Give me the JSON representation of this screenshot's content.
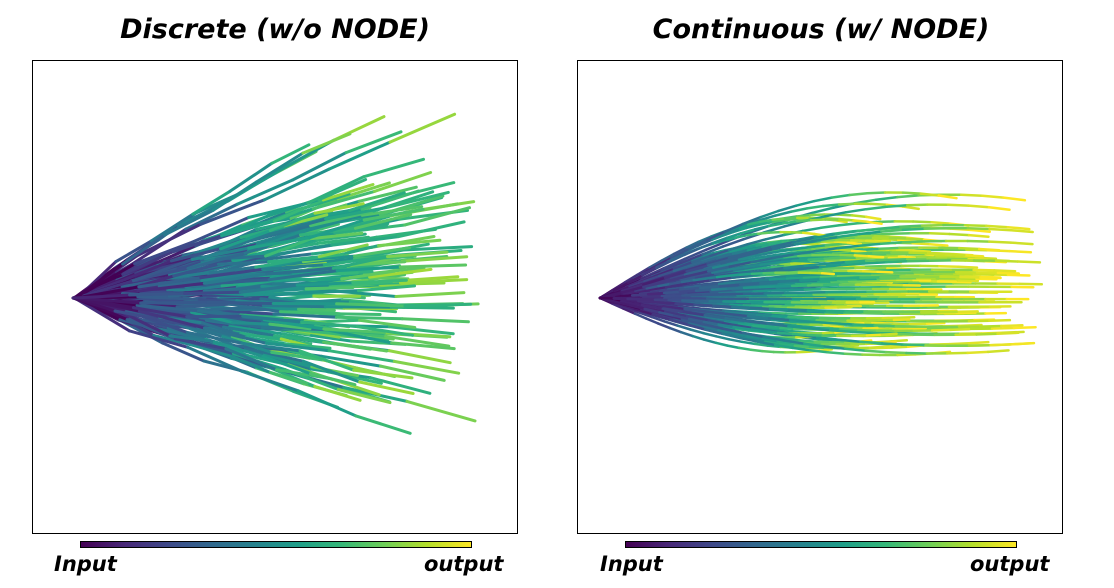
{
  "chart_data": [
    {
      "type": "trajectory",
      "title": "Discrete (w/o NODE)",
      "mode": "discrete",
      "colormap": "viridis",
      "colorbar": {
        "start_label": "Input",
        "end_label": "output"
      },
      "origin": [
        0.0,
        0.0
      ],
      "n_trajectories": 150,
      "trajectory_color_range": [
        0.0,
        0.8
      ],
      "endpoint_x_range": [
        0.55,
        0.95
      ],
      "endpoint_y_range": [
        -1.1,
        1.2
      ],
      "xlim": [
        -0.1,
        1.05
      ],
      "ylim": [
        -1.35,
        1.35
      ],
      "axes_visible": false
    },
    {
      "type": "trajectory",
      "title": "Continuous (w/ NODE)",
      "mode": "continuous",
      "colormap": "viridis",
      "colorbar": {
        "start_label": "Input",
        "end_label": "output"
      },
      "origin": [
        0.0,
        0.0
      ],
      "n_trajectories": 150,
      "trajectory_color_range": [
        0.0,
        1.0
      ],
      "endpoint_x_range": [
        0.5,
        1.0
      ],
      "endpoint_y_range": [
        -0.6,
        0.75
      ],
      "xlim": [
        -0.05,
        1.05
      ],
      "ylim": [
        -1.35,
        1.35
      ],
      "axes_visible": false
    }
  ]
}
